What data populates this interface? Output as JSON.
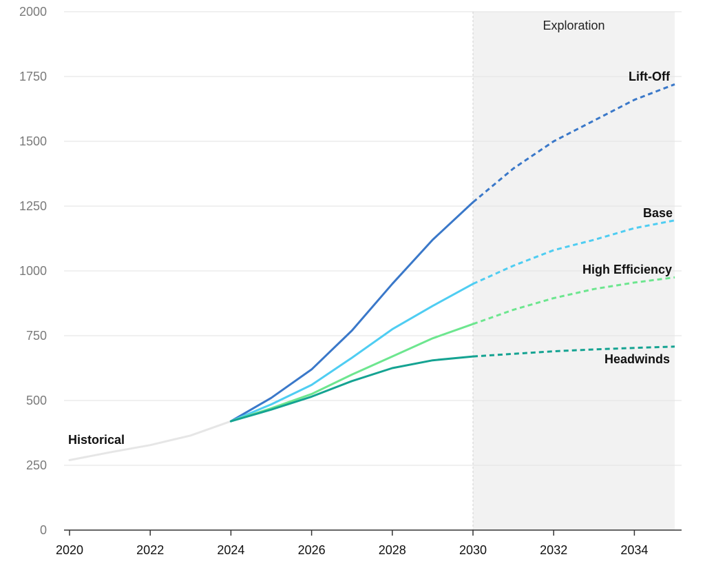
{
  "chart_data": {
    "type": "line",
    "x_range": [
      2020,
      2035
    ],
    "ylim": [
      0,
      2000
    ],
    "y_ticks": [
      0,
      250,
      500,
      750,
      1000,
      1250,
      1500,
      1750,
      2000
    ],
    "x_ticks": [
      2020,
      2022,
      2024,
      2026,
      2028,
      2030,
      2032,
      2034
    ],
    "grid": true,
    "shaded_region": {
      "label": "Exploration",
      "x_start": 2030,
      "x_end": 2035,
      "color": "#f2f2f2"
    },
    "series": [
      {
        "name": "Historical",
        "color": "#e6e6e6",
        "points": [
          [
            2020,
            270
          ],
          [
            2021,
            300
          ],
          [
            2022,
            328
          ],
          [
            2023,
            365
          ],
          [
            2024,
            420
          ]
        ]
      },
      {
        "name": "Lift-Off",
        "color": "#3a78c9",
        "points": [
          [
            2024,
            420
          ],
          [
            2025,
            510
          ],
          [
            2026,
            620
          ],
          [
            2027,
            770
          ],
          [
            2028,
            950
          ],
          [
            2029,
            1120
          ],
          [
            2030,
            1265
          ],
          [
            2031,
            1395
          ],
          [
            2032,
            1500
          ],
          [
            2033,
            1580
          ],
          [
            2034,
            1660
          ],
          [
            2035,
            1720
          ]
        ]
      },
      {
        "name": "Base",
        "color": "#4fcdf2",
        "points": [
          [
            2024,
            420
          ],
          [
            2025,
            485
          ],
          [
            2026,
            560
          ],
          [
            2027,
            665
          ],
          [
            2028,
            775
          ],
          [
            2029,
            865
          ],
          [
            2030,
            950
          ],
          [
            2031,
            1020
          ],
          [
            2032,
            1080
          ],
          [
            2033,
            1120
          ],
          [
            2034,
            1165
          ],
          [
            2035,
            1195
          ]
        ]
      },
      {
        "name": "High Efficiency",
        "color": "#6de68f",
        "points": [
          [
            2024,
            420
          ],
          [
            2025,
            470
          ],
          [
            2026,
            525
          ],
          [
            2027,
            600
          ],
          [
            2028,
            670
          ],
          [
            2029,
            740
          ],
          [
            2030,
            795
          ],
          [
            2031,
            850
          ],
          [
            2032,
            895
          ],
          [
            2033,
            930
          ],
          [
            2034,
            955
          ],
          [
            2035,
            975
          ]
        ]
      },
      {
        "name": "Headwinds",
        "color": "#15a392",
        "points": [
          [
            2024,
            420
          ],
          [
            2025,
            465
          ],
          [
            2026,
            515
          ],
          [
            2027,
            575
          ],
          [
            2028,
            625
          ],
          [
            2029,
            655
          ],
          [
            2030,
            670
          ],
          [
            2031,
            680
          ],
          [
            2032,
            690
          ],
          [
            2033,
            697
          ],
          [
            2034,
            703
          ],
          [
            2035,
            708
          ]
        ]
      }
    ]
  }
}
